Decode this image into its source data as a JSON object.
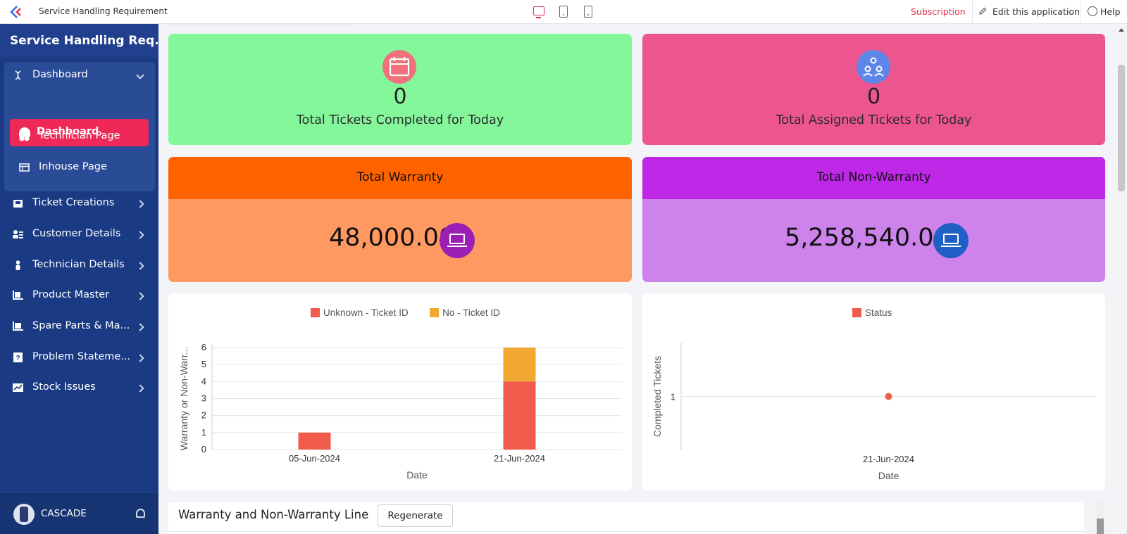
{
  "topbar": {
    "app_title": "Service Handling Requirement",
    "subscription": "Subscription",
    "edit_app": "Edit this application",
    "help": "Help"
  },
  "sidebar": {
    "title": "Service Handling Req...",
    "group_label": "Dashboard",
    "sub_items": [
      {
        "label": "Dashboard",
        "icon": "dashboard-gauge-icon",
        "active": true
      },
      {
        "label": "Technician Page",
        "icon": "cluster-icon"
      },
      {
        "label": "Inhouse Page",
        "icon": "table-icon"
      }
    ],
    "items": [
      {
        "label": "Ticket Creations",
        "icon": "inbox-icon"
      },
      {
        "label": "Customer Details",
        "icon": "user-list-icon"
      },
      {
        "label": "Technician Details",
        "icon": "person-icon"
      },
      {
        "label": "Product Master",
        "icon": "forklift-icon"
      },
      {
        "label": "Spare Parts & Ma...",
        "icon": "truck-icon"
      },
      {
        "label": "Problem Stateme...",
        "icon": "question-box-icon"
      },
      {
        "label": "Stock Issues",
        "icon": "stock-icon"
      }
    ],
    "user": "CASCADE",
    "colors": {
      "bg": "#1a3a84",
      "active": "#ef2957"
    }
  },
  "stats": {
    "completed": {
      "value": "0",
      "label": "Total Tickets Completed for Today"
    },
    "assigned": {
      "value": "0",
      "label": "Total Assigned Tickets for Today"
    },
    "warranty": {
      "title": "Total Warranty",
      "value": "48,000.00"
    },
    "non_warranty": {
      "title": "Total Non-Warranty",
      "value": "5,258,540.00"
    }
  },
  "chart_data": [
    {
      "type": "bar",
      "stacked": true,
      "categories": [
        "05-Jun-2024",
        "21-Jun-2024"
      ],
      "series": [
        {
          "name": "Unknown - Ticket ID",
          "values": [
            1,
            4
          ],
          "color": "#f15b4c"
        },
        {
          "name": "No - Ticket ID",
          "values": [
            0,
            2
          ],
          "color": "#f0a832"
        }
      ],
      "xlabel": "Date",
      "ylabel": "Warranty or Non-Warr...",
      "ylim": [
        0,
        6
      ],
      "yticks": [
        "0",
        "1",
        "2",
        "3",
        "4",
        "5",
        "6"
      ],
      "legend": "top-center",
      "grid": true
    },
    {
      "type": "scatter",
      "categories": [
        "21-Jun-2024"
      ],
      "series": [
        {
          "name": "Status",
          "values": [
            1
          ],
          "color": "#f15b4c"
        }
      ],
      "xlabel": "Date",
      "ylabel": "Completed Tickets",
      "yticks": [
        "1"
      ],
      "legend": "top-center",
      "grid": true
    }
  ],
  "bottom": {
    "title": "Warranty and Non-Warranty Line",
    "regenerate": "Regenerate"
  }
}
